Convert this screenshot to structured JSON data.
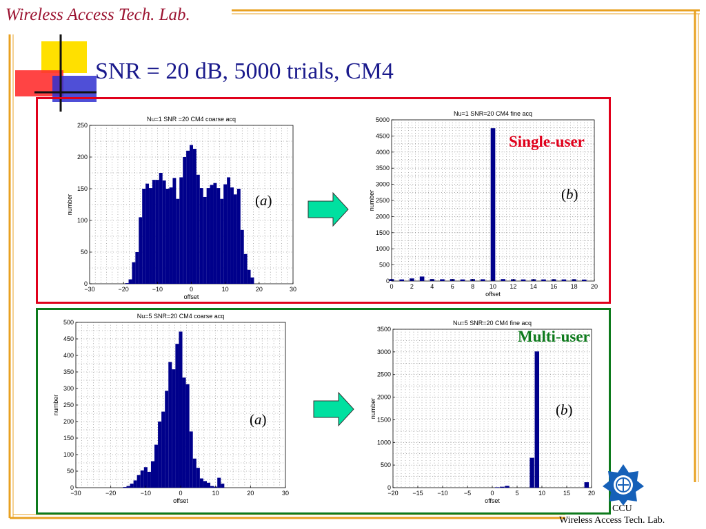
{
  "header": {
    "lab_name": "Wireless Access Tech. Lab."
  },
  "slide": {
    "title": "SNR = 20 dB,  5000 trials, CM4"
  },
  "labels": {
    "single_user": "Single-user",
    "multi_user": "Multi-user",
    "a": "a",
    "b": "b"
  },
  "footer": {
    "ccu": "CCU",
    "lab": "Wireless Access Tech. Lab."
  },
  "colors": {
    "bar": "#00008b",
    "frame_top": "#e0001b",
    "frame_bottom": "#0d7a1c",
    "title": "#1a1a8c",
    "header": "#9b1230",
    "arrow": "#00e0a0",
    "logo": "#1560b8"
  },
  "icons": {
    "arrow": "right-arrow-icon",
    "logo": "ccu-emblem-icon"
  },
  "chart_data": [
    {
      "type": "bar",
      "title": "Nu=1 SNR =20 CM4 coarse acq",
      "xlabel": "offset",
      "ylabel": "number",
      "xlim": [
        -30,
        30
      ],
      "ylim": [
        0,
        250
      ],
      "xticks": [
        -30,
        -20,
        -10,
        0,
        10,
        20,
        30
      ],
      "yticks": [
        0,
        50,
        100,
        150,
        200,
        250
      ],
      "grid": true,
      "bar_width": 1,
      "x": [
        -19,
        -18,
        -17,
        -16,
        -15,
        -14,
        -13,
        -12,
        -11,
        -10,
        -9,
        -8,
        -7,
        -6,
        -5,
        -4,
        -3,
        -2,
        -1,
        0,
        1,
        2,
        3,
        4,
        5,
        6,
        7,
        8,
        9,
        10,
        11,
        12,
        13,
        14,
        15,
        16,
        17,
        18
      ],
      "values": [
        1,
        7,
        34,
        50,
        105,
        150,
        158,
        151,
        164,
        164,
        175,
        163,
        150,
        152,
        167,
        134,
        168,
        200,
        210,
        219,
        213,
        172,
        151,
        137,
        151,
        156,
        159,
        151,
        134,
        157,
        168,
        152,
        141,
        150,
        85,
        47,
        22,
        10
      ]
    },
    {
      "type": "bar",
      "title": "Nu=1 SNR=20 CM4 fine acq",
      "xlabel": "offset",
      "ylabel": "number",
      "xlim": [
        0,
        20
      ],
      "ylim": [
        0,
        5000
      ],
      "xticks": [
        0,
        2,
        4,
        6,
        8,
        10,
        12,
        14,
        16,
        18,
        20
      ],
      "yticks": [
        0,
        500,
        1000,
        1500,
        2000,
        2500,
        3000,
        3500,
        4000,
        4500,
        5000
      ],
      "grid": true,
      "bar_width": 0.45,
      "x": [
        0,
        1,
        2,
        3,
        4,
        5,
        6,
        7,
        8,
        9,
        10,
        11,
        12,
        13,
        14,
        15,
        16,
        17,
        18,
        19
      ],
      "values": [
        60,
        50,
        80,
        140,
        60,
        55,
        60,
        50,
        60,
        55,
        4740,
        60,
        55,
        50,
        55,
        50,
        55,
        50,
        55,
        45
      ]
    },
    {
      "type": "bar",
      "title": "Nu=5 SNR=20 CM4 coarse acq",
      "xlabel": "offset",
      "ylabel": "number",
      "xlim": [
        -30,
        30
      ],
      "ylim": [
        0,
        500
      ],
      "xticks": [
        -30,
        -20,
        -10,
        0,
        10,
        20,
        30
      ],
      "yticks": [
        0,
        50,
        100,
        150,
        200,
        250,
        300,
        350,
        400,
        450,
        500
      ],
      "grid": true,
      "bar_width": 1,
      "x": [
        -16,
        -15,
        -14,
        -13,
        -12,
        -11,
        -10,
        -9,
        -8,
        -7,
        -6,
        -5,
        -4,
        -3,
        -2,
        -1,
        0,
        1,
        2,
        3,
        4,
        5,
        6,
        7,
        8,
        9,
        10,
        11,
        12
      ],
      "values": [
        2,
        5,
        12,
        22,
        38,
        52,
        62,
        48,
        80,
        130,
        200,
        230,
        293,
        380,
        358,
        435,
        472,
        333,
        313,
        170,
        88,
        60,
        28,
        20,
        15,
        5,
        3,
        30,
        12
      ]
    },
    {
      "type": "bar",
      "title": "Nu=5 SNR=20 CM4 fine acq",
      "xlabel": "offset",
      "ylabel": "number",
      "xlim": [
        -20,
        20
      ],
      "ylim": [
        0,
        3500
      ],
      "xticks": [
        -20,
        -15,
        -10,
        -5,
        0,
        5,
        10,
        15,
        20
      ],
      "yticks": [
        0,
        500,
        1000,
        1500,
        2000,
        2500,
        3000,
        3500
      ],
      "grid": true,
      "bar_width": 0.9,
      "x": [
        1,
        2,
        3,
        8,
        9,
        19
      ],
      "values": [
        10,
        20,
        40,
        660,
        3010,
        120
      ]
    }
  ]
}
